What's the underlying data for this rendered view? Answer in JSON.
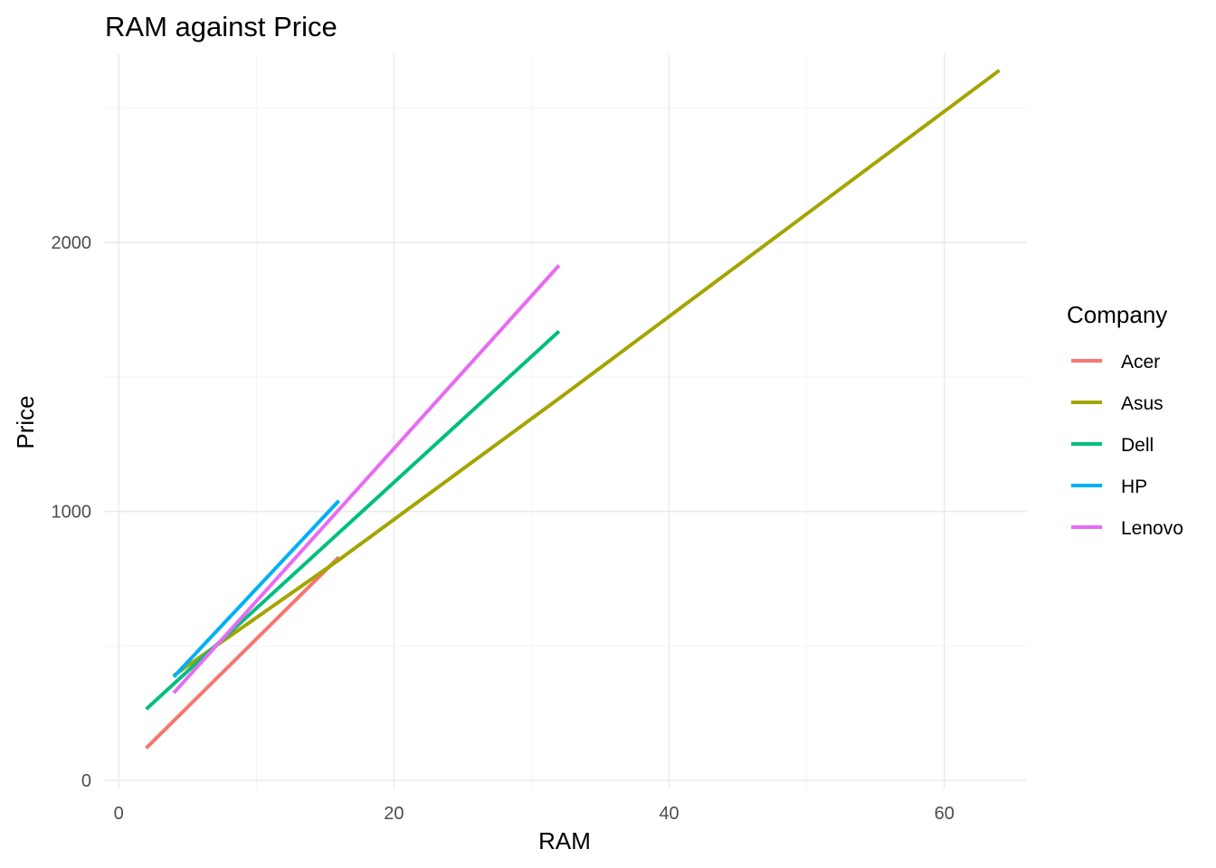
{
  "chart_data": {
    "type": "line",
    "title": "RAM against Price",
    "xlabel": "RAM",
    "ylabel": "Price",
    "xlim": [
      -1,
      66
    ],
    "ylim": [
      -30,
      2700
    ],
    "x_ticks": [
      0,
      20,
      40,
      60
    ],
    "y_ticks": [
      0,
      1000,
      2000
    ],
    "x_tick_labels": [
      "0",
      "20",
      "40",
      "60"
    ],
    "y_tick_labels": [
      "0",
      "1000",
      "2000"
    ],
    "x_minor": [
      10,
      30,
      50
    ],
    "y_minor": [
      500,
      1500,
      2500
    ],
    "grid": true,
    "legend": {
      "title": "Company",
      "placement": "right"
    },
    "series": [
      {
        "name": "Acer",
        "color": "#F8766D",
        "x": [
          2,
          16
        ],
        "y": [
          120,
          830
        ]
      },
      {
        "name": "Asus",
        "color": "#A3A500",
        "x": [
          4,
          16,
          32,
          64
        ],
        "y": [
          390,
          820,
          1420,
          2640
        ]
      },
      {
        "name": "Dell",
        "color": "#00BF7D",
        "x": [
          2,
          32
        ],
        "y": [
          265,
          1670
        ]
      },
      {
        "name": "HP",
        "color": "#00B0F6",
        "x": [
          4,
          16
        ],
        "y": [
          385,
          1040
        ]
      },
      {
        "name": "Lenovo",
        "color": "#E76BF3",
        "x": [
          4,
          32
        ],
        "y": [
          325,
          1915
        ]
      }
    ]
  }
}
